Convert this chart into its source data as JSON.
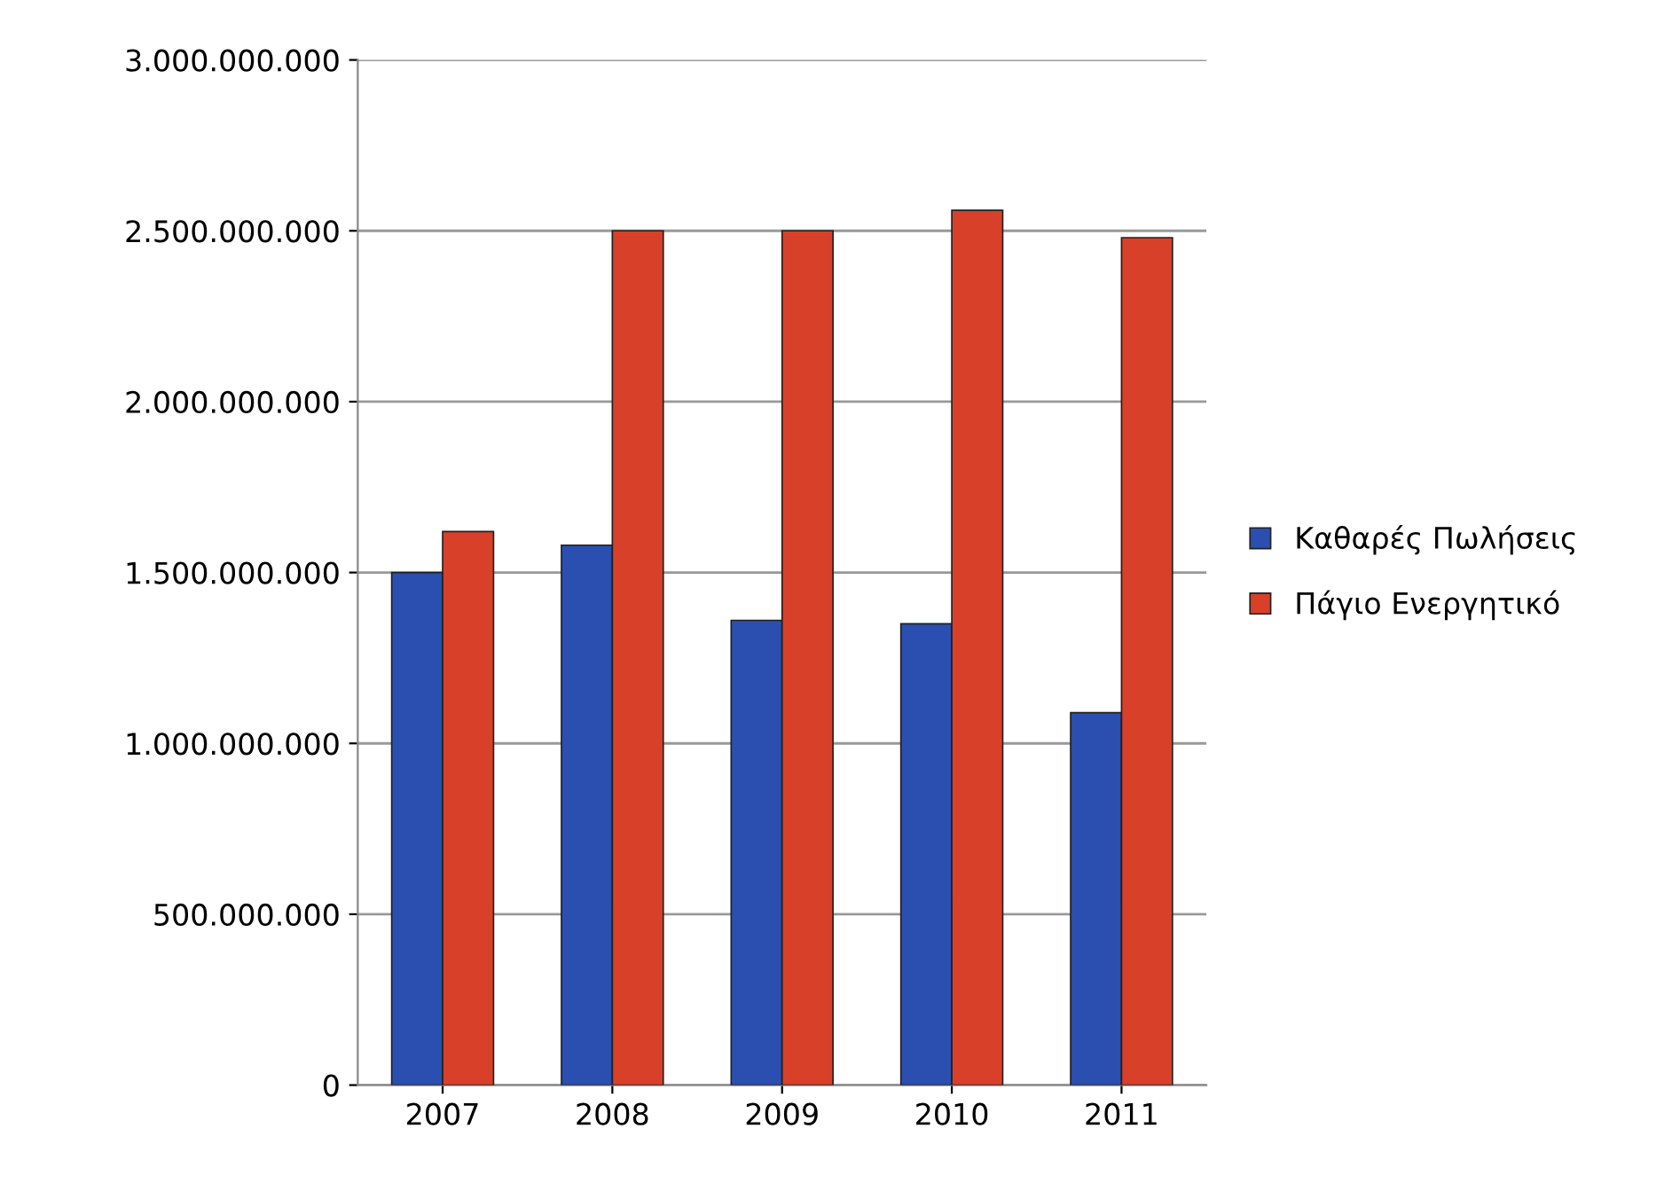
{
  "chart_data": {
    "type": "bar",
    "categories": [
      "2007",
      "2008",
      "2009",
      "2010",
      "2011"
    ],
    "series": [
      {
        "name": "Καθαρές Πωλήσεις",
        "color": "#2a4fb0",
        "values": [
          1500000000,
          1580000000,
          1360000000,
          1350000000,
          1090000000
        ]
      },
      {
        "name": "Πάγιο Ενεργητικό",
        "color": "#d8402a",
        "values": [
          1620000000,
          2500000000,
          2500000000,
          2560000000,
          2480000000
        ]
      }
    ],
    "ylim": [
      0,
      3000000000
    ],
    "yticks": [
      {
        "value": 0,
        "label": "0"
      },
      {
        "value": 500000000,
        "label": "500.000.000"
      },
      {
        "value": 1000000000,
        "label": "1.000.000.000"
      },
      {
        "value": 1500000000,
        "label": "1.500.000.000"
      },
      {
        "value": 2000000000,
        "label": "2.000.000.000"
      },
      {
        "value": 2500000000,
        "label": "2.500.000.000"
      },
      {
        "value": 3000000000,
        "label": "3.000.000.000"
      }
    ],
    "grid": "y",
    "legend": "right"
  }
}
